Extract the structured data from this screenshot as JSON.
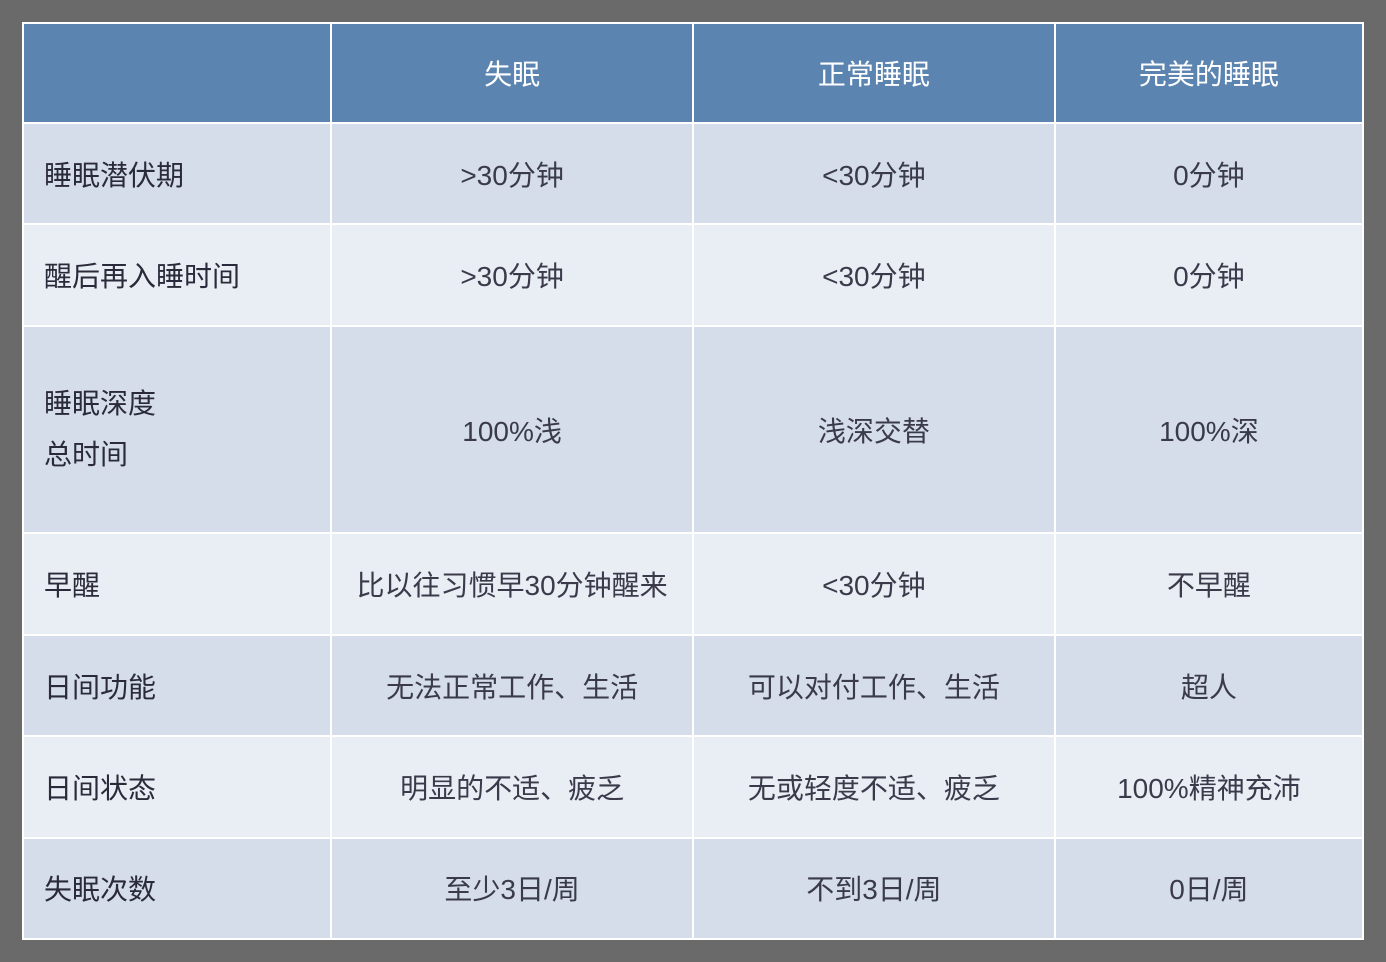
{
  "table": {
    "type": "table",
    "header_bg": "#5b84b1",
    "header_fg": "#ffffff",
    "row_odd_bg": "#d4dde9",
    "row_even_bg": "#e9edf4",
    "border_color": "#ffffff",
    "page_bg": "#6a6a6a",
    "font_family": "Microsoft YaHei",
    "font_size_pt": 20,
    "columns": [
      "",
      "失眠",
      "正常睡眠",
      "完美的睡眠"
    ],
    "column_widths_pct": [
      23,
      27,
      27,
      23
    ],
    "rows": [
      {
        "label": "睡眠潜伏期",
        "cells": [
          ">30分钟",
          "<30分钟",
          "0分钟"
        ]
      },
      {
        "label": "醒后再入睡时间",
        "cells": [
          ">30分钟",
          "<30分钟",
          "0分钟"
        ]
      },
      {
        "label_line1": "睡眠深度",
        "label_line2": "总时间",
        "cells": [
          "100%浅",
          "浅深交替",
          "100%深"
        ]
      },
      {
        "label": "早醒",
        "cells": [
          "比以往习惯早30分钟醒来",
          "<30分钟",
          "不早醒"
        ]
      },
      {
        "label": "日间功能",
        "cells": [
          "无法正常工作、生活",
          "可以对付工作、生活",
          "超人"
        ]
      },
      {
        "label": "日间状态",
        "cells": [
          "明显的不适、疲乏",
          "无或轻度不适、疲乏",
          "100%精神充沛"
        ]
      },
      {
        "label": "失眠次数",
        "cells": [
          "至少3日/周",
          "不到3日/周",
          "0日/周"
        ]
      }
    ]
  }
}
